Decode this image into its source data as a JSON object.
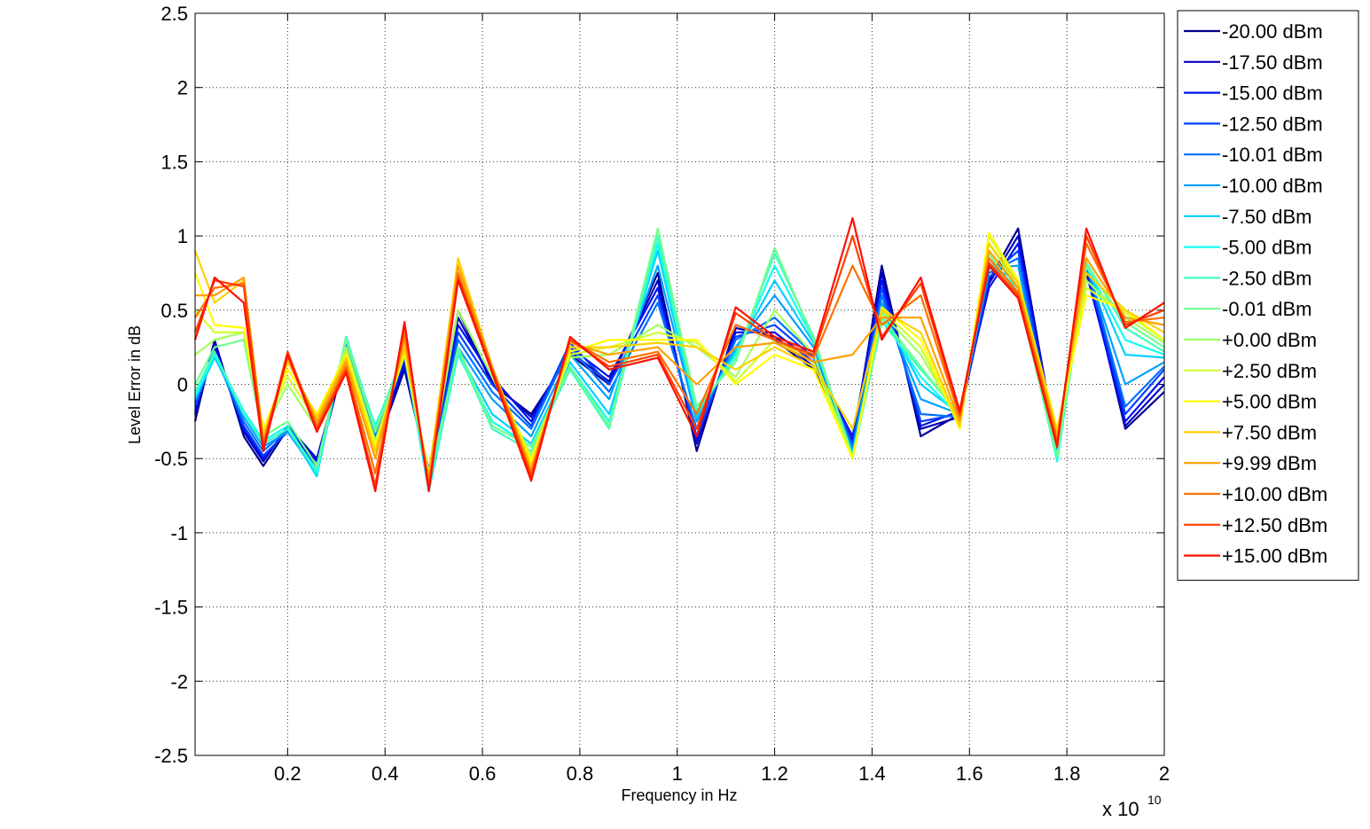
{
  "chart_data": {
    "type": "line",
    "xlabel": "Frequency in Hz",
    "ylabel": "Level Error in dB",
    "x_multiplier": "x 10",
    "x_multiplier_exponent": "10",
    "xlim": [
      0.01,
      2
    ],
    "xticks": [
      0.2,
      0.4,
      0.6,
      0.8,
      1,
      1.2,
      1.4,
      1.6,
      1.8,
      2
    ],
    "ylim": [
      -2.5,
      2.5
    ],
    "yticks": [
      -2.5,
      -2,
      -1.5,
      -1,
      -0.5,
      0,
      0.5,
      1,
      1.5,
      2,
      2.5
    ],
    "grid": true,
    "legend": "outside-top-right",
    "x": [
      0.01,
      0.05,
      0.11,
      0.15,
      0.2,
      0.26,
      0.32,
      0.38,
      0.44,
      0.49,
      0.55,
      0.62,
      0.7,
      0.78,
      0.86,
      0.96,
      1.04,
      1.12,
      1.2,
      1.28,
      1.36,
      1.42,
      1.5,
      1.58,
      1.64,
      1.7,
      1.78,
      1.84,
      1.92,
      2.0
    ],
    "series": [
      {
        "name": "-20.00 dBm",
        "color": "#000090",
        "values": [
          -0.25,
          0.3,
          -0.35,
          -0.55,
          -0.3,
          -0.55,
          0.2,
          -0.45,
          0.1,
          -0.6,
          0.5,
          0.0,
          -0.2,
          0.2,
          0.0,
          0.75,
          -0.45,
          0.4,
          0.3,
          0.1,
          -0.4,
          0.8,
          -0.35,
          -0.2,
          0.7,
          1.05,
          -0.45,
          0.8,
          -0.3,
          -0.05
        ]
      },
      {
        "name": "-17.50 dBm",
        "color": "#0000c0",
        "values": [
          -0.2,
          0.28,
          -0.32,
          -0.52,
          -0.28,
          -0.5,
          0.22,
          -0.42,
          0.12,
          -0.58,
          0.45,
          0.02,
          -0.22,
          0.22,
          0.02,
          0.7,
          -0.4,
          0.38,
          0.32,
          0.12,
          -0.38,
          0.75,
          -0.3,
          -0.22,
          0.68,
          1.0,
          -0.42,
          0.78,
          -0.28,
          0.0
        ]
      },
      {
        "name": "-15.00 dBm",
        "color": "#0010f0",
        "values": [
          -0.18,
          0.25,
          -0.3,
          -0.5,
          -0.3,
          -0.52,
          0.25,
          -0.4,
          0.15,
          -0.62,
          0.4,
          0.05,
          -0.25,
          0.25,
          0.05,
          0.65,
          -0.38,
          0.35,
          0.35,
          0.15,
          -0.35,
          0.7,
          -0.28,
          -0.18,
          0.65,
          0.95,
          -0.4,
          0.75,
          -0.25,
          0.05
        ]
      },
      {
        "name": "-12.50 dBm",
        "color": "#0040ff",
        "values": [
          -0.15,
          0.22,
          -0.28,
          -0.48,
          -0.32,
          -0.55,
          0.28,
          -0.38,
          0.18,
          -0.65,
          0.35,
          0.0,
          -0.28,
          0.28,
          0.0,
          0.6,
          -0.35,
          0.32,
          0.4,
          0.18,
          -0.4,
          0.65,
          -0.25,
          -0.2,
          0.72,
          0.9,
          -0.45,
          0.8,
          -0.2,
          0.1
        ]
      },
      {
        "name": "-10.01 dBm",
        "color": "#0070ff",
        "values": [
          -0.12,
          0.2,
          -0.25,
          -0.45,
          -0.3,
          -0.58,
          0.3,
          -0.35,
          0.2,
          -0.68,
          0.3,
          -0.05,
          -0.3,
          0.25,
          -0.05,
          0.55,
          -0.3,
          0.3,
          0.45,
          0.2,
          -0.42,
          0.6,
          -0.2,
          -0.22,
          0.75,
          0.85,
          -0.48,
          0.82,
          -0.15,
          0.12
        ]
      },
      {
        "name": "-10.00 dBm",
        "color": "#00a0ff",
        "values": [
          -0.1,
          0.2,
          -0.22,
          -0.42,
          -0.32,
          -0.6,
          0.3,
          -0.32,
          0.2,
          -0.7,
          0.25,
          -0.1,
          -0.35,
          0.2,
          -0.1,
          0.8,
          -0.25,
          0.25,
          0.6,
          0.25,
          -0.45,
          0.55,
          -0.1,
          -0.2,
          0.78,
          0.8,
          -0.5,
          0.8,
          0.0,
          0.15
        ]
      },
      {
        "name": "-7.50 dBm",
        "color": "#00d0ff",
        "values": [
          -0.1,
          0.18,
          -0.2,
          -0.4,
          -0.3,
          -0.62,
          0.32,
          -0.3,
          0.22,
          -0.72,
          0.22,
          -0.2,
          -0.4,
          0.15,
          -0.2,
          0.9,
          -0.22,
          0.22,
          0.7,
          0.28,
          -0.48,
          0.5,
          0.0,
          -0.2,
          0.8,
          0.7,
          -0.5,
          0.8,
          0.2,
          0.18
        ]
      },
      {
        "name": "-5.00 dBm",
        "color": "#10ffef",
        "values": [
          -0.08,
          0.2,
          -0.18,
          -0.38,
          -0.28,
          -0.6,
          0.3,
          -0.28,
          0.2,
          -0.7,
          0.2,
          -0.25,
          -0.42,
          0.12,
          -0.25,
          0.95,
          -0.2,
          0.2,
          0.8,
          0.3,
          -0.5,
          0.45,
          0.05,
          -0.22,
          0.82,
          0.65,
          -0.52,
          0.8,
          0.3,
          0.2
        ]
      },
      {
        "name": "-2.50 dBm",
        "color": "#40ffbf",
        "values": [
          -0.05,
          0.22,
          -0.2,
          -0.4,
          -0.3,
          -0.58,
          0.32,
          -0.3,
          0.22,
          -0.68,
          0.22,
          -0.3,
          -0.45,
          0.1,
          -0.3,
          1.0,
          -0.18,
          0.18,
          0.88,
          0.32,
          -0.5,
          0.42,
          0.1,
          -0.2,
          0.85,
          0.62,
          -0.5,
          0.82,
          0.38,
          0.22
        ]
      },
      {
        "name": "-0.01 dBm",
        "color": "#70ff8f",
        "values": [
          0.0,
          0.25,
          0.3,
          -0.35,
          -0.25,
          -0.55,
          0.3,
          -0.32,
          0.2,
          -0.65,
          0.25,
          -0.28,
          -0.42,
          0.12,
          -0.28,
          1.05,
          -0.15,
          0.15,
          0.92,
          0.3,
          -0.48,
          0.45,
          0.12,
          -0.22,
          0.88,
          0.6,
          -0.48,
          0.8,
          0.42,
          0.25
        ]
      },
      {
        "name": "+0.00 dBm",
        "color": "#a0ff60",
        "values": [
          0.2,
          0.3,
          0.35,
          -0.32,
          0.0,
          -0.3,
          0.25,
          -0.38,
          0.2,
          -0.62,
          0.5,
          0.05,
          -0.48,
          0.18,
          0.2,
          0.4,
          0.25,
          0.05,
          0.5,
          0.2,
          -0.5,
          0.48,
          0.2,
          -0.25,
          0.95,
          0.65,
          -0.4,
          0.7,
          0.45,
          0.28
        ]
      },
      {
        "name": "+2.50 dBm",
        "color": "#d0ff30",
        "values": [
          0.5,
          0.35,
          0.35,
          -0.3,
          0.05,
          -0.25,
          0.22,
          -0.4,
          0.2,
          -0.6,
          0.7,
          0.08,
          -0.5,
          0.2,
          0.25,
          0.35,
          0.28,
          0.02,
          0.3,
          0.15,
          -0.5,
          0.5,
          0.25,
          -0.28,
          1.0,
          0.68,
          -0.35,
          0.65,
          0.48,
          0.3
        ]
      },
      {
        "name": "+5.00 dBm",
        "color": "#ffff00",
        "values": [
          0.75,
          0.4,
          0.38,
          -0.3,
          0.1,
          -0.2,
          0.2,
          -0.42,
          0.22,
          -0.6,
          0.8,
          0.1,
          -0.52,
          0.22,
          0.3,
          0.3,
          0.3,
          0.0,
          0.2,
          0.1,
          -0.5,
          0.52,
          0.3,
          -0.3,
          1.02,
          0.7,
          -0.3,
          0.6,
          0.5,
          0.3
        ]
      },
      {
        "name": "+7.50 dBm",
        "color": "#ffd000",
        "values": [
          0.9,
          0.55,
          0.7,
          -0.35,
          0.15,
          -0.22,
          0.18,
          -0.45,
          0.25,
          -0.62,
          0.85,
          0.12,
          -0.55,
          0.25,
          0.25,
          0.28,
          0.25,
          0.1,
          0.25,
          0.12,
          -0.3,
          0.5,
          0.35,
          -0.28,
          0.95,
          0.68,
          -0.32,
          0.75,
          0.5,
          0.35
        ]
      },
      {
        "name": "+9.99 dBm",
        "color": "#ffa000",
        "values": [
          0.6,
          0.6,
          0.72,
          -0.38,
          0.18,
          -0.25,
          0.15,
          -0.5,
          0.3,
          -0.65,
          0.8,
          0.12,
          -0.58,
          0.28,
          0.2,
          0.25,
          0.0,
          0.25,
          0.28,
          0.15,
          0.2,
          0.45,
          0.45,
          -0.25,
          0.9,
          0.65,
          -0.35,
          0.85,
          0.45,
          0.4
        ]
      },
      {
        "name": "+10.00 dBm",
        "color": "#ff7000",
        "values": [
          0.45,
          0.65,
          0.68,
          -0.4,
          0.2,
          -0.28,
          0.12,
          -0.6,
          0.35,
          -0.68,
          0.75,
          0.1,
          -0.6,
          0.3,
          0.15,
          0.22,
          -0.2,
          0.4,
          0.3,
          0.18,
          0.8,
          0.4,
          0.6,
          -0.22,
          0.85,
          0.62,
          -0.38,
          0.95,
          0.42,
          0.45
        ]
      },
      {
        "name": "+12.50 dBm",
        "color": "#ff4000",
        "values": [
          0.35,
          0.7,
          0.66,
          -0.42,
          0.22,
          -0.3,
          0.1,
          -0.68,
          0.4,
          -0.7,
          0.72,
          0.1,
          -0.62,
          0.3,
          0.12,
          0.2,
          -0.3,
          0.48,
          0.3,
          0.2,
          1.0,
          0.32,
          0.68,
          -0.2,
          0.82,
          0.6,
          -0.4,
          1.0,
          0.4,
          0.5
        ]
      },
      {
        "name": "+15.00 dBm",
        "color": "#ff1000",
        "values": [
          0.3,
          0.72,
          0.55,
          -0.45,
          0.2,
          -0.32,
          0.08,
          -0.72,
          0.42,
          -0.72,
          0.7,
          0.08,
          -0.65,
          0.32,
          0.1,
          0.18,
          -0.35,
          0.52,
          0.32,
          0.22,
          1.12,
          0.3,
          0.72,
          -0.18,
          0.8,
          0.58,
          -0.42,
          1.05,
          0.38,
          0.55
        ]
      }
    ]
  }
}
